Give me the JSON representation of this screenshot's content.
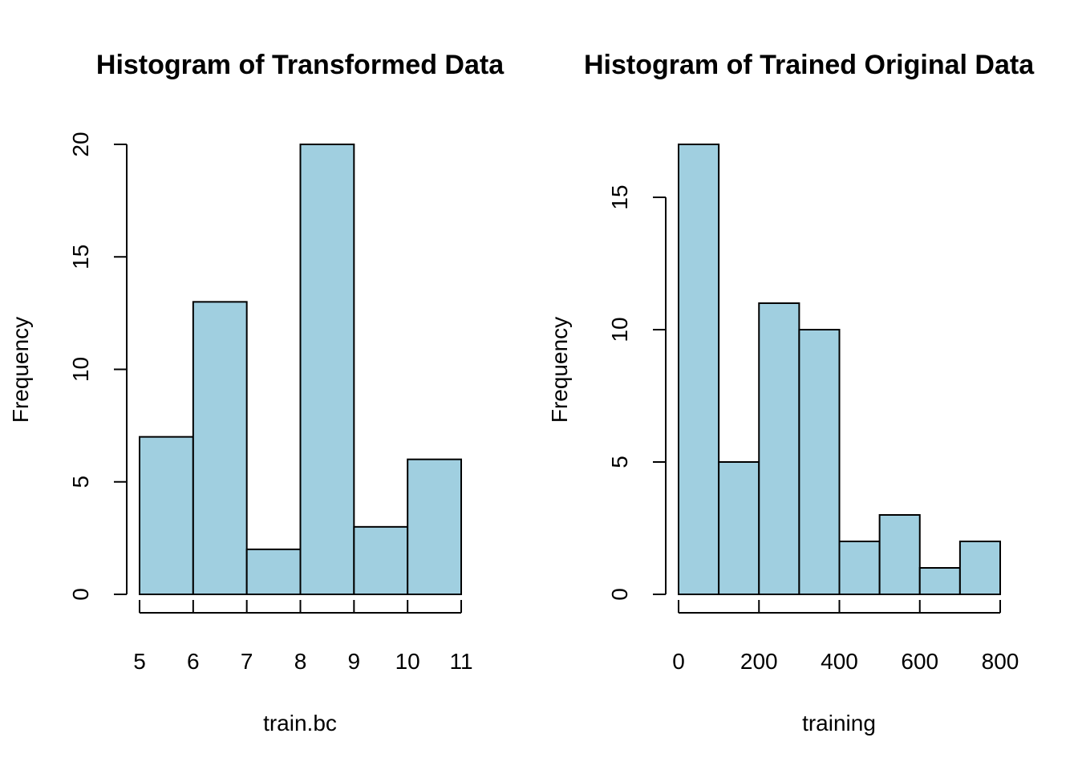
{
  "chart_data": [
    {
      "type": "bar",
      "title": "Histogram of Transformed Data",
      "xlabel": "train.bc",
      "ylabel": "Frequency",
      "bin_edges": [
        5,
        6,
        7,
        8,
        9,
        10,
        11
      ],
      "values": [
        7,
        13,
        2,
        20,
        3,
        6
      ],
      "xticks": [
        5,
        6,
        7,
        8,
        9,
        10,
        11
      ],
      "yticks": [
        0,
        5,
        10,
        15,
        20
      ],
      "xlim": [
        5,
        11
      ],
      "ylim": [
        0,
        20
      ],
      "bar_color": "#a0cfe0",
      "grid": false
    },
    {
      "type": "bar",
      "title": "Histogram of Trained Original Data",
      "xlabel": "training",
      "ylabel": "Frequency",
      "bin_edges": [
        0,
        100,
        200,
        300,
        400,
        500,
        600,
        700,
        800
      ],
      "values": [
        17,
        5,
        11,
        10,
        2,
        3,
        1,
        2
      ],
      "xticks": [
        0,
        200,
        400,
        600,
        800
      ],
      "yticks": [
        0,
        5,
        10,
        15
      ],
      "xlim": [
        0,
        800
      ],
      "ylim": [
        0,
        17
      ],
      "bar_color": "#a0cfe0",
      "grid": false
    }
  ]
}
